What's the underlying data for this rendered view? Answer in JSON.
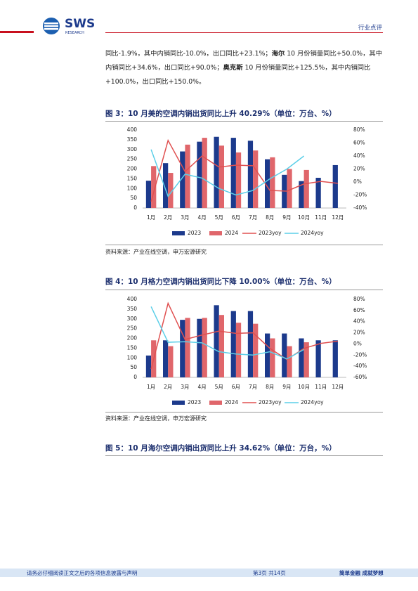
{
  "header": {
    "logo": "SWS",
    "logo_sub": "RESEARCH",
    "section": "行业点评"
  },
  "body_text": [
    {
      "text": "同比-1.9%，其中内销同比-10.0%，出口同比+23.1%；",
      "bold": false
    },
    {
      "text": "海尔",
      "bold": true
    },
    {
      "text": " 10 月份销量同比+50.0%，其中内销同比+34.6%，出口同比+90.0%；",
      "bold": false
    },
    {
      "text": "奥克斯",
      "bold": true
    },
    {
      "text": " 10 月份销量同比+125.5%，其中内销同比+100.0%，出口同比+150.0%。",
      "bold": false
    }
  ],
  "chart_data": [
    {
      "type": "bar",
      "title": "图 3：10 月美的空调内销出货同比上升 40.29%（单位：万台、%）",
      "source": "资料来源：产业在线空调，申万宏源研究",
      "categories": [
        "1月",
        "2月",
        "3月",
        "4月",
        "5月",
        "6月",
        "7月",
        "8月",
        "9月",
        "10月",
        "11月",
        "12月"
      ],
      "series": [
        {
          "name": "2023",
          "type": "bar",
          "color": "#1c3a8c",
          "values": [
            140,
            230,
            290,
            340,
            365,
            360,
            345,
            250,
            170,
            138,
            155,
            220
          ]
        },
        {
          "name": "2024",
          "type": "bar",
          "color": "#e0666b",
          "values": [
            215,
            180,
            325,
            360,
            320,
            285,
            295,
            260,
            200,
            195,
            null,
            null
          ]
        },
        {
          "name": "2023yoy",
          "type": "line",
          "axis": "y2",
          "color": "#e05050",
          "values": [
            -30,
            64,
            16,
            40,
            23,
            26,
            25,
            -13,
            -14,
            -3,
            1,
            -2
          ]
        },
        {
          "name": "2024yoy",
          "type": "line",
          "axis": "y2",
          "color": "#5ccfe8",
          "values": [
            50,
            -22,
            12,
            6,
            -10,
            -20,
            -13,
            5,
            20,
            40,
            null,
            null
          ]
        }
      ],
      "ylim": [
        0,
        400
      ],
      "yticks": [
        0,
        50,
        100,
        150,
        200,
        250,
        300,
        350,
        400
      ],
      "y2lim": [
        -40,
        80
      ],
      "y2ticks": [
        {
          "value": -40,
          "label": "-40%"
        },
        {
          "value": -20,
          "label": "-20%"
        },
        {
          "value": 0,
          "label": "0%"
        },
        {
          "value": 20,
          "label": "20%"
        },
        {
          "value": 40,
          "label": "40%"
        },
        {
          "value": 60,
          "label": "60%"
        },
        {
          "value": 80,
          "label": "80%"
        }
      ],
      "grid": false,
      "legend": "bottom"
    },
    {
      "type": "bar",
      "title": "图 4：10 月格力空调内销出货同比下降 10.00%（单位：万台、%）",
      "source": "资料来源：产业在线空调，申万宏源研究",
      "categories": [
        "1月",
        "2月",
        "3月",
        "4月",
        "5月",
        "6月",
        "7月",
        "8月",
        "9月",
        "10月",
        "11月",
        "12月"
      ],
      "series": [
        {
          "name": "2023",
          "type": "bar",
          "color": "#1c3a8c",
          "values": [
            112,
            190,
            295,
            300,
            370,
            340,
            340,
            225,
            225,
            200,
            190,
            190
          ]
        },
        {
          "name": "2024",
          "type": "bar",
          "color": "#e0666b",
          "values": [
            190,
            160,
            305,
            305,
            320,
            280,
            275,
            200,
            160,
            180,
            null,
            null
          ]
        },
        {
          "name": "2023yoy",
          "type": "line",
          "axis": "y2",
          "color": "#e05050",
          "values": [
            -45,
            73,
            8,
            16,
            23,
            19,
            20,
            -8,
            -28,
            -8,
            1,
            5
          ]
        },
        {
          "name": "2024yoy",
          "type": "line",
          "axis": "y2",
          "color": "#5ccfe8",
          "values": [
            67,
            3,
            4,
            2,
            -14,
            -18,
            -20,
            -14,
            -27,
            -10,
            null,
            null
          ]
        }
      ],
      "ylim": [
        0,
        400
      ],
      "yticks": [
        0,
        50,
        100,
        150,
        200,
        250,
        300,
        350,
        400
      ],
      "y2lim": [
        -60,
        80
      ],
      "y2ticks": [
        {
          "value": -60,
          "label": "-60%"
        },
        {
          "value": -40,
          "label": "-40%"
        },
        {
          "value": -20,
          "label": "-20%"
        },
        {
          "value": 0,
          "label": "0%"
        },
        {
          "value": 20,
          "label": "20%"
        },
        {
          "value": 40,
          "label": "40%"
        },
        {
          "value": 60,
          "label": "60%"
        },
        {
          "value": 80,
          "label": "80%"
        }
      ],
      "grid": false,
      "legend": "bottom"
    }
  ],
  "figure5_title": "图 5：10 月海尔空调内销出货同比上升 34.62%（单位：万台，%）",
  "footer": {
    "notice": "请务必仔细阅读正文之后的各项信息披露与声明",
    "page": "第3页 共14页",
    "slogan": "简单金融 成就梦想"
  }
}
